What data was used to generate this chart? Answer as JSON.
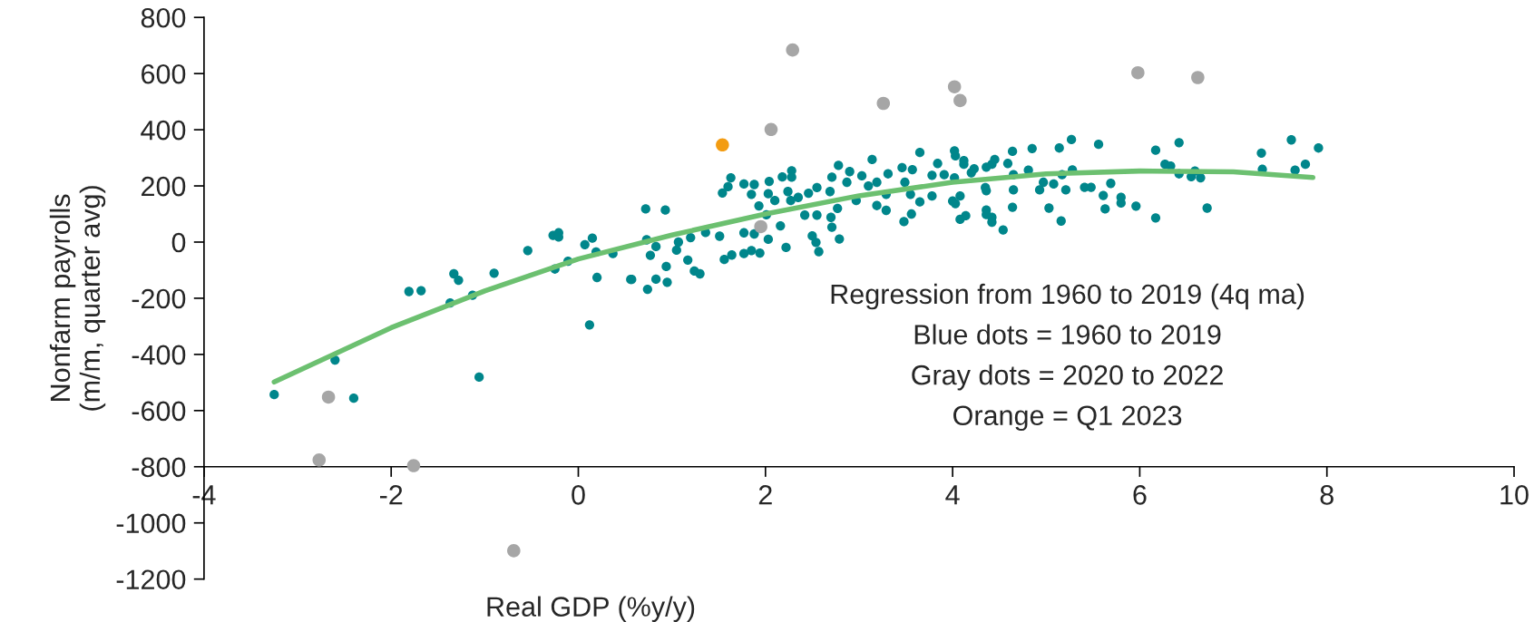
{
  "chart_data": {
    "type": "scatter",
    "xlabel": "Real GDP (%y/y)",
    "ylabel": "Nonfarm payrolls\n(m/m, quarter avg)",
    "xlim": [
      -4,
      10
    ],
    "xticks": [
      -4,
      -2,
      0,
      2,
      4,
      6,
      8,
      10
    ],
    "ylim": [
      -1200,
      800
    ],
    "yticks": [
      -1200,
      -1000,
      -800,
      -600,
      -400,
      -200,
      0,
      200,
      400,
      600,
      800
    ],
    "grid": false,
    "legend": false,
    "marker": "circle",
    "annotations": [
      "Regression from 1960 to 2019 (4q ma)",
      "Blue dots = 1960 to 2019",
      "Gray dots = 2020 to 2022",
      "Orange = Q1 2023"
    ],
    "series": [
      {
        "type": "scatter",
        "color": "#00868b",
        "x": [
          -3.25,
          -2.6,
          -2.4,
          -1.81,
          -1.68,
          -1.37,
          -1.33,
          -1.28,
          -1.13,
          -1.06,
          -0.9,
          -0.54,
          -0.27,
          -0.21,
          -0.21,
          -0.25,
          -0.11,
          0.07,
          0.15,
          0.19,
          0.2,
          0.12,
          0.37,
          0.56,
          0.72,
          0.93,
          0.73,
          0.77,
          0.83,
          0.74,
          0.83,
          0.95,
          0.94,
          0.57,
          1.07,
          1.05,
          1.17,
          1.2,
          1.24,
          1.3,
          1.36,
          1.51,
          1.56,
          1.64,
          1.77,
          1.85,
          1.94,
          1.77,
          1.88,
          2.03,
          2.22,
          2.16,
          2.5,
          2.54,
          2.57,
          2.79,
          2.71,
          2.7,
          1.54,
          1.63,
          1.6,
          1.77,
          1.88,
          1.85,
          1.93,
          2.04,
          2.03,
          2.1,
          2.01,
          2.18,
          2.28,
          2.28,
          2.24,
          2.27,
          2.35,
          2.42,
          2.46,
          2.55,
          2.55,
          2.69,
          2.78,
          2.71,
          2.77,
          2.9,
          2.87,
          2.97,
          3.03,
          3.14,
          3.1,
          3.19,
          3.19,
          3.29,
          3.31,
          3.29,
          3.46,
          3.57,
          3.49,
          3.55,
          3.48,
          3.56,
          3.65,
          3.65,
          3.78,
          3.84,
          3.91,
          3.78,
          4.02,
          4.02,
          4.08,
          4.03,
          4.14,
          4.12,
          4.23,
          4.35,
          4.36,
          4.42,
          4.42,
          4.03,
          4.12,
          4.2,
          4.36,
          4.45,
          4.59,
          4.64,
          4.65,
          4.36,
          4.65,
          4.64,
          4.36,
          4.42,
          4.54,
          4.08,
          4.0,
          4.85,
          4.81,
          4.97,
          4.93,
          5.08,
          5.03,
          5.14,
          5.16,
          5.21,
          5.27,
          5.28,
          5.17,
          5.41,
          5.48,
          5.56,
          5.61,
          5.63,
          5.69,
          5.8,
          5.8,
          5.96,
          6.17,
          6.17,
          6.27,
          6.33,
          6.42,
          6.42,
          6.55,
          6.59,
          6.65,
          6.72,
          7.3,
          7.31,
          7.62,
          7.66,
          7.77,
          7.91
        ],
        "values": [
          -543,
          -420,
          -556,
          -176,
          -173,
          -217,
          -113,
          -136,
          -189,
          -481,
          -111,
          -30,
          24,
          33,
          18,
          -96,
          -68,
          -9,
          14,
          -35,
          -126,
          -295,
          -41,
          -133,
          118,
          114,
          8,
          -47,
          -16,
          -168,
          -132,
          -143,
          -87,
          -133,
          0,
          -29,
          -64,
          16,
          -103,
          -113,
          34,
          21,
          -62,
          -46,
          -41,
          -30,
          -39,
          33,
          29,
          10,
          -19,
          58,
          22,
          -1,
          -34,
          11,
          53,
          88,
          175,
          229,
          197,
          207,
          205,
          170,
          129,
          216,
          172,
          148,
          97,
          232,
          254,
          231,
          180,
          148,
          159,
          96,
          174,
          194,
          96,
          180,
          273,
          231,
          120,
          251,
          213,
          148,
          236,
          294,
          200,
          213,
          130,
          113,
          243,
          170,
          265,
          258,
          213,
          170,
          73,
          100,
          319,
          143,
          238,
          280,
          240,
          164,
          229,
          325,
          164,
          137,
          94,
          290,
          261,
          194,
          114,
          88,
          277,
          307,
          277,
          247,
          267,
          294,
          280,
          323,
          240,
          183,
          186,
          124,
          98,
          71,
          43,
          81,
          146,
          333,
          256,
          213,
          186,
          207,
          121,
          335,
          75,
          186,
          365,
          257,
          240,
          195,
          195,
          348,
          166,
          118,
          209,
          159,
          139,
          128,
          327,
          86,
          277,
          271,
          243,
          354,
          233,
          253,
          229,
          121,
          317,
          259,
          364,
          256,
          277,
          335
        ]
      },
      {
        "type": "scatter",
        "color": "#a6a6a6",
        "x": [
          -2.77,
          -2.67,
          -1.76,
          -0.69,
          2.29,
          2.06,
          3.26,
          4.02,
          4.08,
          1.95,
          5.98,
          6.62
        ],
        "values": [
          -776,
          -552,
          -796,
          -1099,
          684,
          401,
          494,
          553,
          504,
          55,
          603,
          586
        ]
      },
      {
        "type": "scatter",
        "color": "#f39c12",
        "x": [
          1.54
        ],
        "values": [
          346
        ]
      },
      {
        "type": "line",
        "color": "#6cc070",
        "marker": "none",
        "line_style": "solid",
        "x": [
          -3.25,
          -2,
          -1,
          0,
          1,
          2,
          3,
          4,
          5,
          6,
          7,
          7.85
        ],
        "values": [
          -498,
          -305,
          -174,
          -60,
          25,
          100,
          165,
          213,
          243,
          253,
          250,
          230
        ]
      }
    ]
  }
}
